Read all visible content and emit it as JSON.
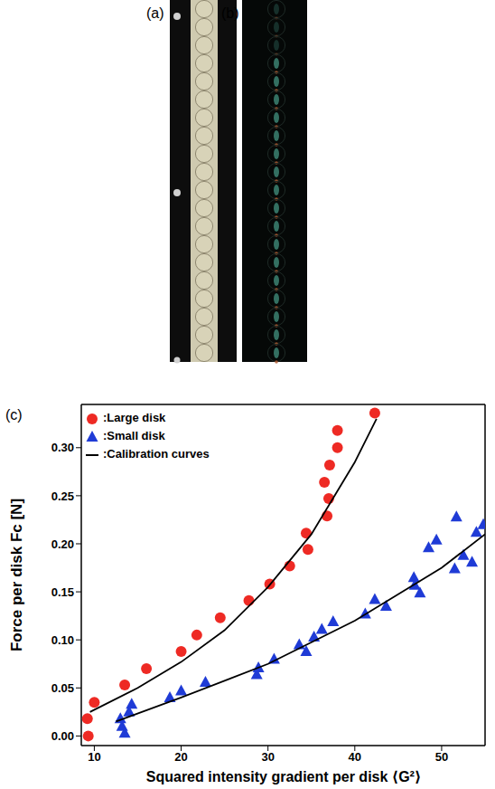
{
  "panel_labels": [
    "(a)",
    "(b)",
    "(c)"
  ],
  "chart_data": {
    "type": "scatter",
    "x_label": "Squared intensity gradient per disk ⟨G²⟩",
    "y_label": "Force per disk Fc [N]",
    "xlim": [
      8.5,
      55
    ],
    "xticks": [
      10,
      20,
      30,
      40,
      50
    ],
    "ylim": [
      -0.01,
      0.345
    ],
    "yticks": [
      {
        "value": 0,
        "label": "0.00"
      },
      0.05,
      {
        "value": 0.1,
        "label": "0.10"
      },
      0.15,
      {
        "value": 0.2,
        "label": "0.20"
      },
      0.25,
      {
        "value": 0.3,
        "label": "0.30"
      }
    ],
    "legend": "upper left",
    "series": [
      {
        "name": ":Large disk",
        "type": "scatter",
        "marker": "circle",
        "color": "#ee2a24",
        "x": [
          9.2,
          9.3,
          10,
          13.5,
          16,
          20,
          21.8,
          24.5,
          27.8,
          30.2,
          32.5,
          34.4,
          34.6,
          36.5,
          36.8,
          37,
          37.1,
          38,
          38,
          42.3
        ],
        "values": [
          0.018,
          0.0,
          0.035,
          0.053,
          0.07,
          0.088,
          0.105,
          0.123,
          0.141,
          0.158,
          0.177,
          0.211,
          0.194,
          0.264,
          0.229,
          0.247,
          0.282,
          0.3,
          0.318,
          0.336
        ]
      },
      {
        "name": ":Small disk",
        "type": "scatter",
        "marker": "triangle",
        "color": "#1f3bd6",
        "x": [
          13,
          13.2,
          13.5,
          14,
          14.3,
          18.7,
          20,
          22.8,
          28.7,
          28.9,
          30.7,
          33.6,
          34.4,
          35.3,
          36.2,
          37.5,
          41.2,
          42.3,
          43.6,
          46.8,
          46.9,
          47.5,
          48.5,
          49.4,
          51.5,
          51.7,
          52.5,
          53.5,
          54,
          54.8
        ],
        "values": [
          0.018,
          0.01,
          0.003,
          0.025,
          0.033,
          0.04,
          0.047,
          0.056,
          0.064,
          0.071,
          0.08,
          0.095,
          0.088,
          0.103,
          0.111,
          0.119,
          0.127,
          0.142,
          0.135,
          0.165,
          0.157,
          0.149,
          0.196,
          0.204,
          0.174,
          0.228,
          0.188,
          0.181,
          0.212,
          0.22
        ]
      },
      {
        "name": ":Calibration curves",
        "type": "line",
        "line_style": "solid",
        "color": "#000000",
        "x": [
          9.5,
          15,
          20,
          25,
          30,
          35,
          40,
          42.5
        ],
        "values": [
          0.025,
          0.05,
          0.077,
          0.11,
          0.155,
          0.21,
          0.285,
          0.33
        ]
      },
      {
        "name": ":Calibration curves",
        "type": "line",
        "line_style": "solid",
        "color": "#000000",
        "x": [
          12.5,
          20,
          30,
          40,
          50,
          55
        ],
        "values": [
          0.015,
          0.04,
          0.075,
          0.12,
          0.175,
          0.21
        ]
      }
    ]
  }
}
